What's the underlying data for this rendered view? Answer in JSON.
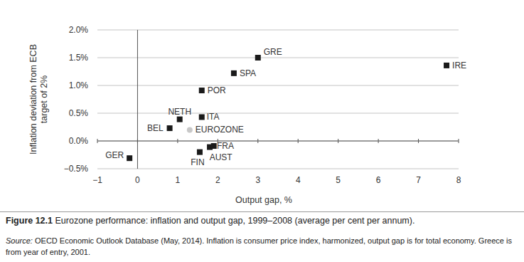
{
  "chart_data": {
    "type": "scatter",
    "x_label": "Output gap, %",
    "y_label": [
      "Inflation deviation from ECB",
      "target of 2%"
    ],
    "figure_number": "Figure 12.1",
    "title": "Eurozone performance: inflation and output gap, 1999–2008 (average per cent per annum).",
    "source_label": "Source:",
    "source": "OECD Economic Outlook Database (May, 2014). Inflation is consumer price index, harmonized, output gap is for total economy. Greece is from year of entry, 2001.",
    "xlim": [
      -1,
      8
    ],
    "xticks": [
      -1,
      0,
      1,
      2,
      3,
      4,
      5,
      6,
      7,
      8
    ],
    "ylim": [
      -0.5,
      2.0
    ],
    "yticks": [
      {
        "value": -0.5,
        "label": "−0.5%"
      },
      {
        "value": 0.0,
        "label": "0.0%"
      },
      {
        "value": 0.5,
        "label": "0.5%"
      },
      {
        "value": 1.0,
        "label": "1.0%"
      },
      {
        "value": 1.5,
        "label": "1.5%"
      },
      {
        "value": 2.0,
        "label": "2.0%"
      }
    ],
    "grid": true,
    "series": [
      {
        "color": "#1a1a1a",
        "marker": "square",
        "labels": [
          "GRE",
          "SPA",
          "IRE",
          "POR",
          "NETH",
          "ITA",
          "BEL",
          "GER",
          "FIN",
          "FRA",
          "AUST"
        ],
        "x": [
          3.0,
          2.4,
          7.7,
          1.6,
          1.05,
          1.6,
          0.8,
          -0.2,
          1.55,
          1.8,
          1.9
        ],
        "values": [
          1.5,
          1.22,
          1.36,
          0.91,
          0.39,
          0.43,
          0.23,
          -0.31,
          -0.2,
          -0.11,
          -0.09
        ]
      },
      {
        "color": "#c8c8c8",
        "marker": "circle",
        "labels": [
          "EUROZONE"
        ],
        "x": [
          1.3
        ],
        "values": [
          0.2
        ]
      }
    ]
  }
}
